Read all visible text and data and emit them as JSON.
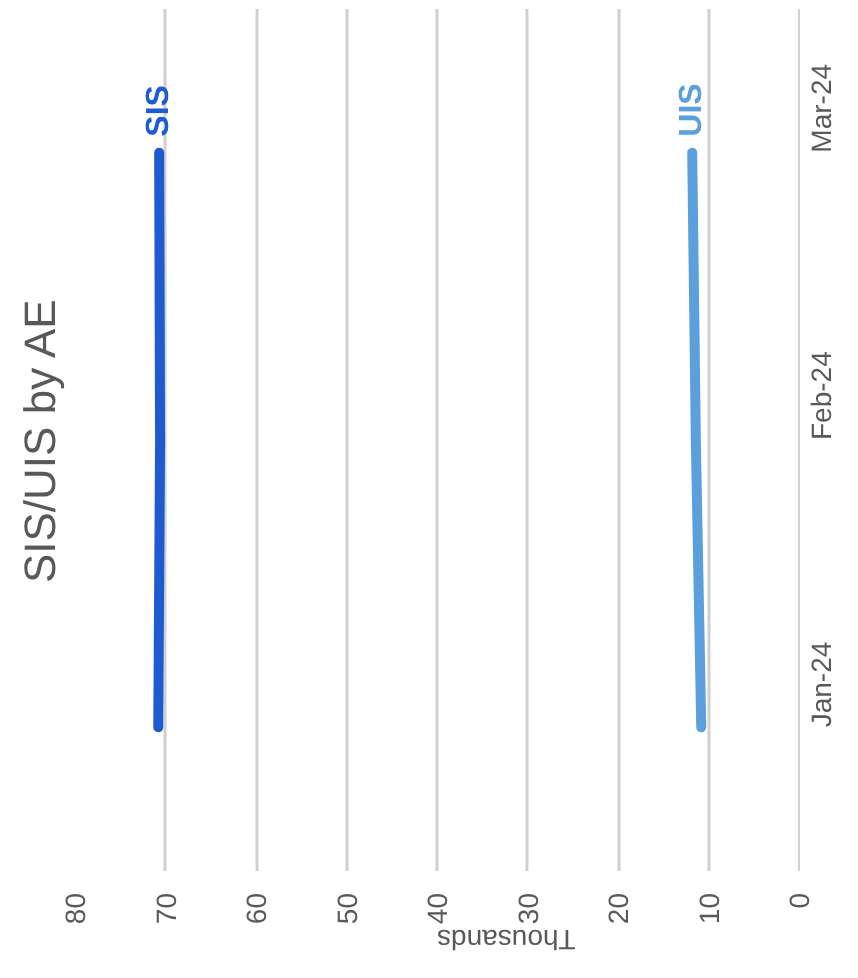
{
  "chart_data": {
    "type": "line",
    "title": "SIS/UIS by AE",
    "xlabel": "Thousands",
    "orientation": "horizontal",
    "categories": [
      "Mar-24",
      "Feb-24",
      "Jan-24"
    ],
    "series": [
      {
        "name": "SIS",
        "color": "#1f5bd0",
        "values": [
          70.7,
          70.6,
          70.8
        ]
      },
      {
        "name": "UIS",
        "color": "#5b9fdc",
        "values": [
          11.8,
          11.4,
          10.8
        ]
      }
    ],
    "xlim": [
      80,
      0
    ],
    "xticks": [
      0,
      10,
      20,
      30,
      40,
      50,
      60,
      70,
      80
    ],
    "grid": "x",
    "legend": false
  }
}
